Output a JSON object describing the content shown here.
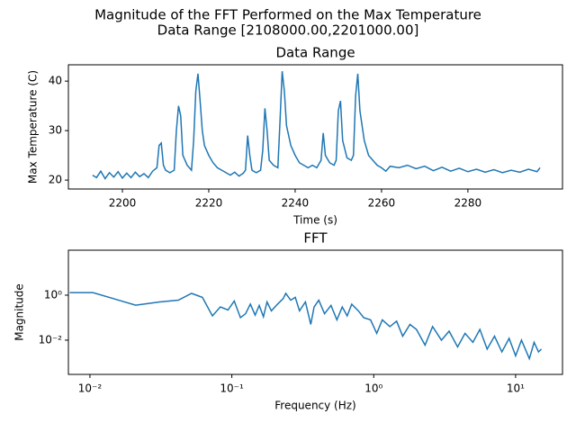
{
  "title": "Magnitude of the FFT Performed on the Max Temperature",
  "subtitle": "Data Range [2108000.00,2201000.00]",
  "chart_data": [
    {
      "type": "line",
      "title": "Data Range",
      "xlabel": "Time (s)",
      "ylabel": "Max Temperature (C)",
      "color": "#1f77b4",
      "x": [
        2193.1,
        2194,
        2195,
        2196,
        2197,
        2198,
        2199,
        2200,
        2201,
        2202,
        2203,
        2204,
        2205,
        2206,
        2207,
        2208,
        2208.5,
        2209,
        2209.5,
        2210,
        2211,
        2212,
        2212.5,
        2213,
        2213.5,
        2214,
        2215,
        2216,
        2216.5,
        2217,
        2217.5,
        2218,
        2218.5,
        2219,
        2220,
        2221,
        2222,
        2223,
        2224,
        2225,
        2226,
        2227,
        2228,
        2228.5,
        2229,
        2229.5,
        2230,
        2231,
        2232,
        2232.5,
        2233,
        2233.5,
        2234,
        2235,
        2236,
        2236.5,
        2237,
        2237.5,
        2238,
        2239,
        2240,
        2241,
        2242,
        2243,
        2244,
        2245,
        2246,
        2246.5,
        2247,
        2248,
        2249,
        2249.5,
        2250,
        2250.5,
        2251,
        2252,
        2253,
        2253.5,
        2254,
        2254.5,
        2255,
        2256,
        2257,
        2258,
        2259,
        2260,
        2261,
        2262,
        2264,
        2266,
        2268,
        2270,
        2272,
        2274,
        2276,
        2278,
        2280,
        2282,
        2284,
        2286,
        2288,
        2290,
        2292,
        2294,
        2296,
        2296.7
      ],
      "values": [
        21,
        20.5,
        21.8,
        20.3,
        21.5,
        20.6,
        21.7,
        20.4,
        21.4,
        20.5,
        21.6,
        20.7,
        21.3,
        20.5,
        21.8,
        22.5,
        27,
        27.5,
        23,
        22,
        21.5,
        22,
        30,
        35,
        33,
        25,
        23,
        22,
        28,
        38,
        41.5,
        36,
        30,
        27,
        25,
        23.5,
        22.5,
        22,
        21.5,
        21,
        21.6,
        20.8,
        21.4,
        22,
        29,
        25,
        22,
        21.5,
        22,
        26,
        34.5,
        30,
        24,
        23,
        22.5,
        32,
        42,
        38,
        31,
        27,
        25,
        23.5,
        23,
        22.5,
        23,
        22.5,
        24,
        29.5,
        25,
        23.5,
        23,
        24,
        34,
        36,
        28,
        24.5,
        24,
        25,
        37,
        41.5,
        34,
        28,
        25,
        24,
        23,
        22.5,
        21.8,
        22.8,
        22.5,
        23,
        22.3,
        22.8,
        21.9,
        22.6,
        21.8,
        22.4,
        21.7,
        22.2,
        21.6,
        22.1,
        21.5,
        22,
        21.6,
        22.2,
        21.7,
        22.5
      ],
      "xlim": [
        2187.5,
        2301.9
      ],
      "ylim": [
        18.2,
        43.3
      ],
      "xticks": [
        2200,
        2220,
        2240,
        2260,
        2280
      ],
      "yticks": [
        20,
        30,
        40
      ]
    },
    {
      "type": "line",
      "title": "FFT",
      "xlabel": "Frequency (Hz)",
      "ylabel": "Magnitude",
      "color": "#1f77b4",
      "xlog": true,
      "ylog": true,
      "x": [
        0.0072,
        0.0105,
        0.021,
        0.031,
        0.042,
        0.052,
        0.062,
        0.073,
        0.083,
        0.094,
        0.104,
        0.115,
        0.125,
        0.135,
        0.146,
        0.156,
        0.167,
        0.177,
        0.19,
        0.21,
        0.23,
        0.24,
        0.26,
        0.28,
        0.3,
        0.33,
        0.36,
        0.38,
        0.41,
        0.45,
        0.5,
        0.55,
        0.6,
        0.65,
        0.7,
        0.78,
        0.85,
        0.95,
        1.05,
        1.15,
        1.3,
        1.45,
        1.6,
        1.8,
        2.0,
        2.3,
        2.6,
        3.0,
        3.4,
        3.9,
        4.4,
        5.0,
        5.6,
        6.3,
        7.1,
        8.0,
        9.0,
        10.0,
        11.0,
        12.5,
        13.5,
        14.5,
        15.2
      ],
      "values": [
        1.3,
        1.3,
        0.36,
        0.5,
        0.6,
        1.2,
        0.8,
        0.12,
        0.3,
        0.22,
        0.55,
        0.1,
        0.15,
        0.4,
        0.13,
        0.35,
        0.11,
        0.5,
        0.2,
        0.4,
        0.7,
        1.2,
        0.6,
        0.8,
        0.2,
        0.5,
        0.05,
        0.3,
        0.6,
        0.15,
        0.35,
        0.08,
        0.3,
        0.12,
        0.4,
        0.2,
        0.1,
        0.08,
        0.02,
        0.08,
        0.04,
        0.07,
        0.015,
        0.05,
        0.03,
        0.006,
        0.04,
        0.01,
        0.025,
        0.005,
        0.02,
        0.008,
        0.03,
        0.004,
        0.015,
        0.003,
        0.012,
        0.002,
        0.01,
        0.0015,
        0.008,
        0.003,
        0.004
      ],
      "xlim": [
        0.00705,
        21.4
      ],
      "ylim": [
        0.0003,
        100
      ],
      "xticks": [
        {
          "value": 0.01,
          "label": "10⁻²"
        },
        {
          "value": 0.1,
          "label": "10⁻¹"
        },
        {
          "value": 1,
          "label": "10⁰"
        },
        {
          "value": 10,
          "label": "10¹"
        }
      ],
      "yticks": [
        {
          "value": 0.01,
          "label": "10⁻²"
        },
        {
          "value": 1,
          "label": "10⁰"
        }
      ]
    }
  ]
}
